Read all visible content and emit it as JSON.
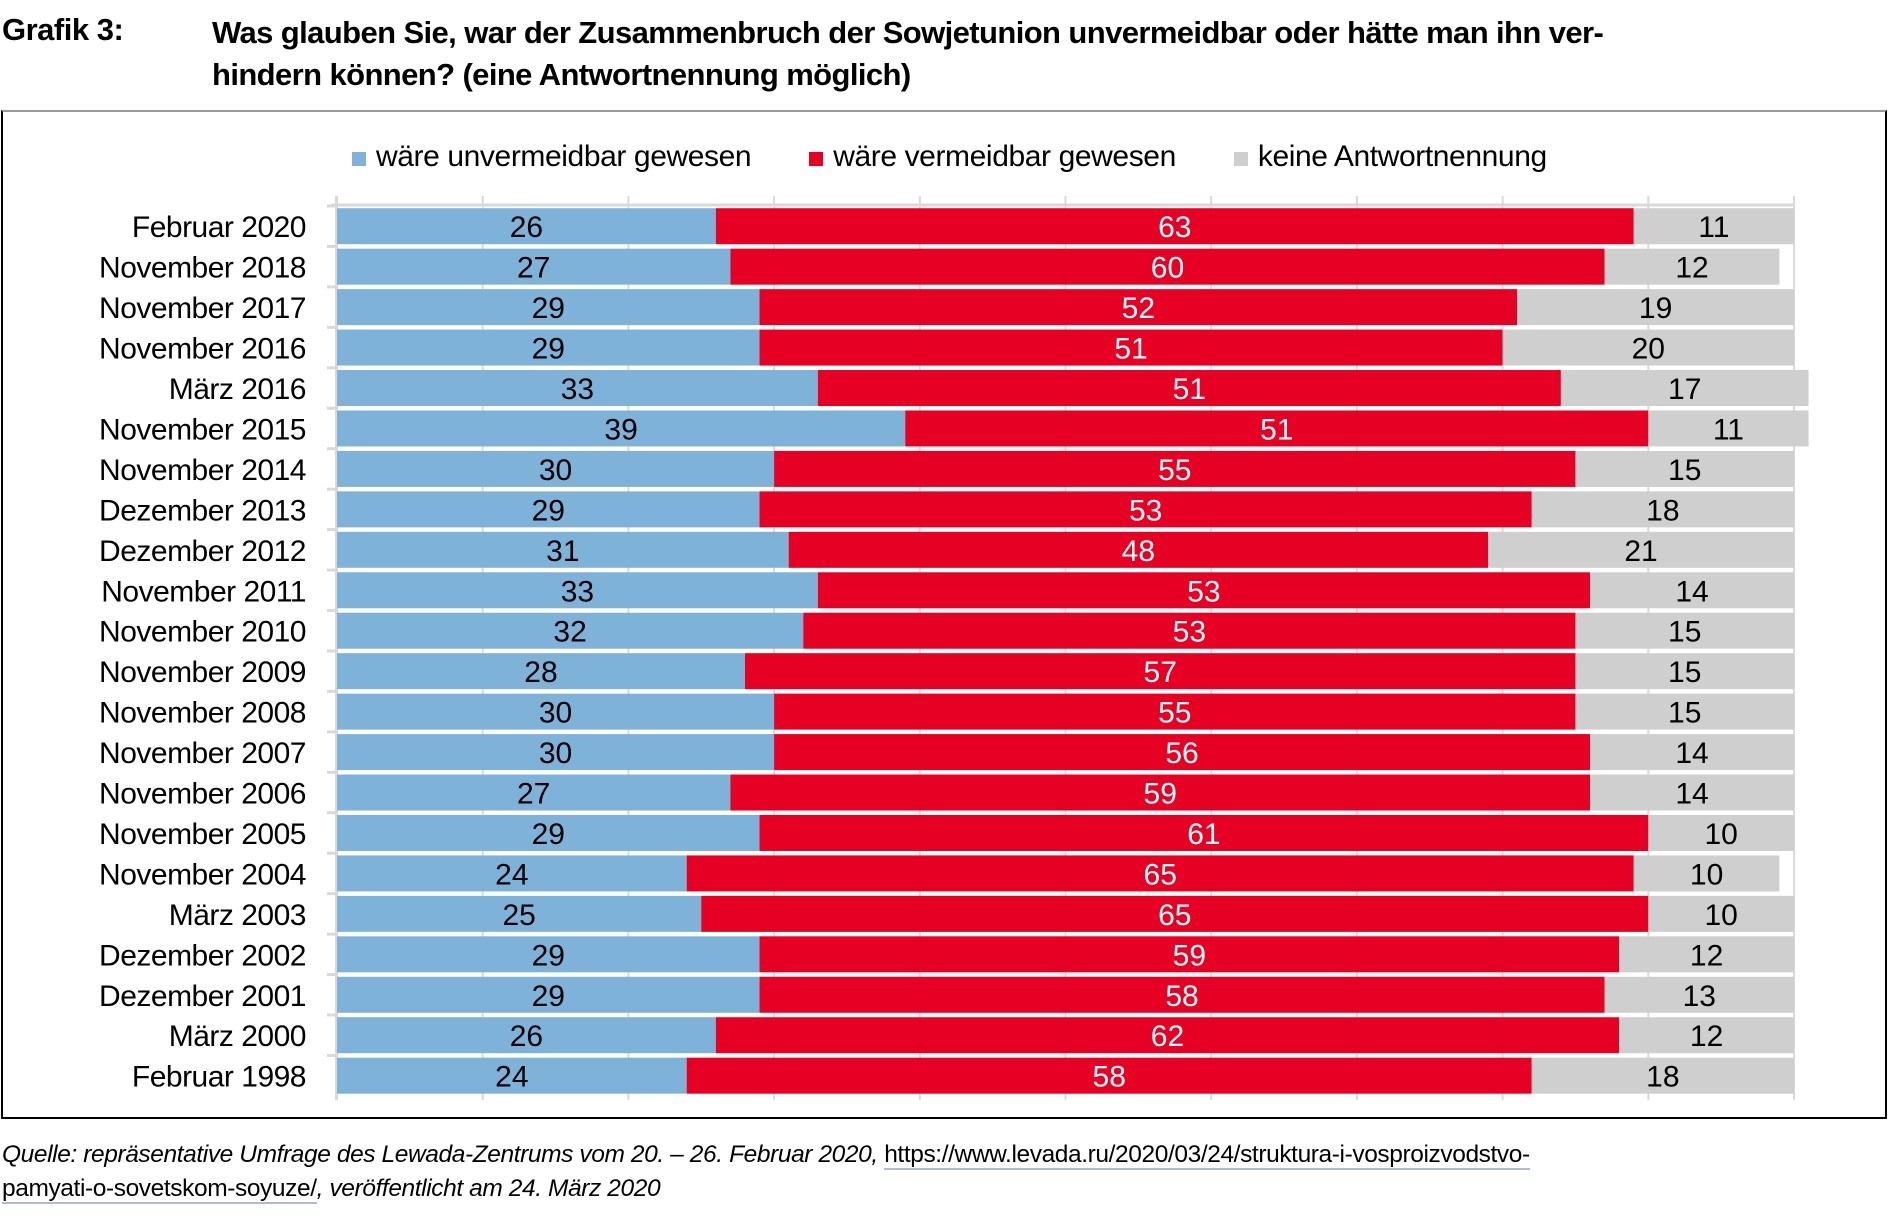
{
  "figure": {
    "label": "Grafik 3:",
    "title": "Was glauben Sie, war der Zusammenbruch der Sowjetunion unvermeidbar oder hätte man ihn verhindern können? (eine Antwortnennung möglich)",
    "title_line1": "Was glauben Sie, war der Zusammenbruch der Sowjetunion unvermeidbar oder hätte man ihn ver-",
    "title_line2": "hindern können? (eine Antwortnennung möglich)"
  },
  "legend": [
    {
      "label": "wäre unvermeidbar gewesen",
      "color": "#7fb2d9"
    },
    {
      "label": "wäre vermeidbar gewesen",
      "color": "#e60023"
    },
    {
      "label": "keine Antwortnennung",
      "color": "#d0cfcf"
    }
  ],
  "source": {
    "prefix": "Quelle: repräsentative Umfrage des Lewada-Zentrums vom 20. – 26. Februar 2020, ",
    "link_part1": "https://www.levada.ru/2020/03/24/struktura-i-vosproizvodstvo-",
    "link_part2": "pamyati-o-sovetskom-soyuze/",
    "suffix": ", veröffentlicht am 24. März 2020"
  },
  "chart_data": {
    "type": "bar",
    "orientation": "horizontal",
    "stacked": "100%",
    "title": "Was glauben Sie, war der Zusammenbruch der Sowjetunion unvermeidbar oder hätte man ihn verhindern können? (eine Antwortnennung möglich)",
    "xlabel": "",
    "ylabel": "",
    "xlim": [
      0,
      100
    ],
    "grid": true,
    "legend_position": "top",
    "categories": [
      "Februar 2020",
      "November 2018",
      "November 2017",
      "November 2016",
      "März 2016",
      "November 2015",
      "November 2014",
      "Dezember 2013",
      "Dezember 2012",
      "November 2011",
      "November 2010",
      "November 2009",
      "November 2008",
      "November 2007",
      "November 2006",
      "November 2005",
      "November 2004",
      "März 2003",
      "Dezember 2002",
      "Dezember 2001",
      "März 2000",
      "Februar 1998"
    ],
    "series": [
      {
        "name": "wäre unvermeidbar gewesen",
        "color": "#7fb2d9",
        "label_color": "#000000",
        "values": [
          26,
          27,
          29,
          29,
          33,
          39,
          30,
          29,
          31,
          33,
          32,
          28,
          30,
          30,
          27,
          29,
          24,
          25,
          29,
          29,
          26,
          24
        ]
      },
      {
        "name": "wäre vermeidbar gewesen",
        "color": "#e60023",
        "label_color": "#ffffff",
        "values": [
          63,
          60,
          52,
          51,
          51,
          51,
          55,
          53,
          48,
          53,
          53,
          57,
          55,
          56,
          59,
          61,
          65,
          65,
          59,
          58,
          62,
          58
        ]
      },
      {
        "name": "keine Antwortnennung",
        "color": "#d0cfcf",
        "label_color": "#000000",
        "values": [
          11,
          12,
          19,
          20,
          17,
          11,
          15,
          18,
          21,
          14,
          15,
          15,
          15,
          14,
          14,
          10,
          10,
          10,
          12,
          13,
          12,
          18
        ]
      }
    ]
  }
}
